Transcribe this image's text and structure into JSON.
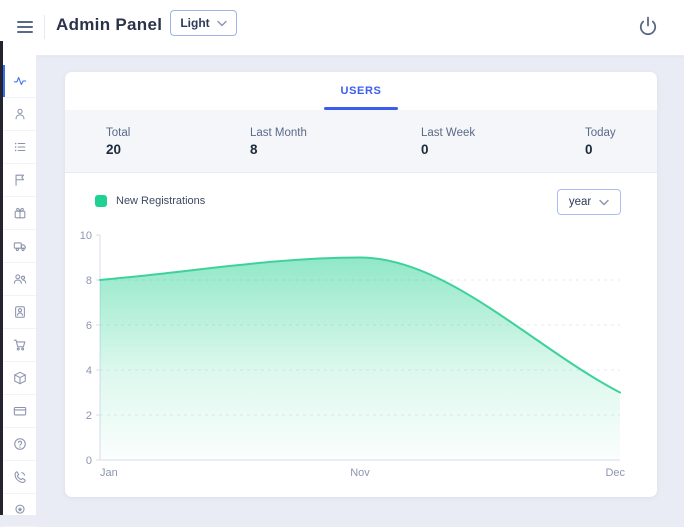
{
  "header": {
    "title": "Admin Panel",
    "theme_dropdown": {
      "value": "Light"
    }
  },
  "sidebar": {
    "items": [
      {
        "icon": "activity",
        "active": true
      },
      {
        "icon": "user",
        "active": false
      },
      {
        "icon": "list",
        "active": false
      },
      {
        "icon": "flag",
        "active": false
      },
      {
        "icon": "gift",
        "active": false
      },
      {
        "icon": "truck",
        "active": false
      },
      {
        "icon": "users-group",
        "active": false
      },
      {
        "icon": "user-badge",
        "active": false
      },
      {
        "icon": "shopping-cart",
        "active": false
      },
      {
        "icon": "package",
        "active": false
      },
      {
        "icon": "credit-card",
        "active": false
      },
      {
        "icon": "help",
        "active": false
      },
      {
        "icon": "phone",
        "active": false
      },
      {
        "icon": "award",
        "active": false
      }
    ]
  },
  "panel": {
    "tab_label": "USERS",
    "stats": [
      {
        "label": "Total",
        "value": "20"
      },
      {
        "label": "Last Month",
        "value": "8"
      },
      {
        "label": "Last Week",
        "value": "0"
      },
      {
        "label": "Today",
        "value": "0"
      }
    ],
    "legend_label": "New Registrations",
    "range_dropdown": {
      "value": "year"
    }
  },
  "chart_data": {
    "type": "area",
    "title": "New Registrations",
    "x_labels": [
      "Jan",
      "Nov",
      "Dec"
    ],
    "values": [
      8,
      9,
      3
    ],
    "ylim": [
      0,
      10
    ],
    "yticks": [
      0,
      2,
      4,
      6,
      8,
      10
    ],
    "xlabel": "",
    "ylabel": "",
    "grid": "faint dashed horizontal lines",
    "legend_position": "top-left",
    "line_color": "#3ed29b",
    "fill_color": "#23d191",
    "fill_style": "vertical gradient fading to white"
  },
  "colors": {
    "accent_blue": "#3a5cf0",
    "green": "#1fd192",
    "page_background": "#e9ecf4",
    "stats_band": "#f4f6fa",
    "muted_text": "#5a6a85",
    "axis_text": "#8d96b2"
  }
}
